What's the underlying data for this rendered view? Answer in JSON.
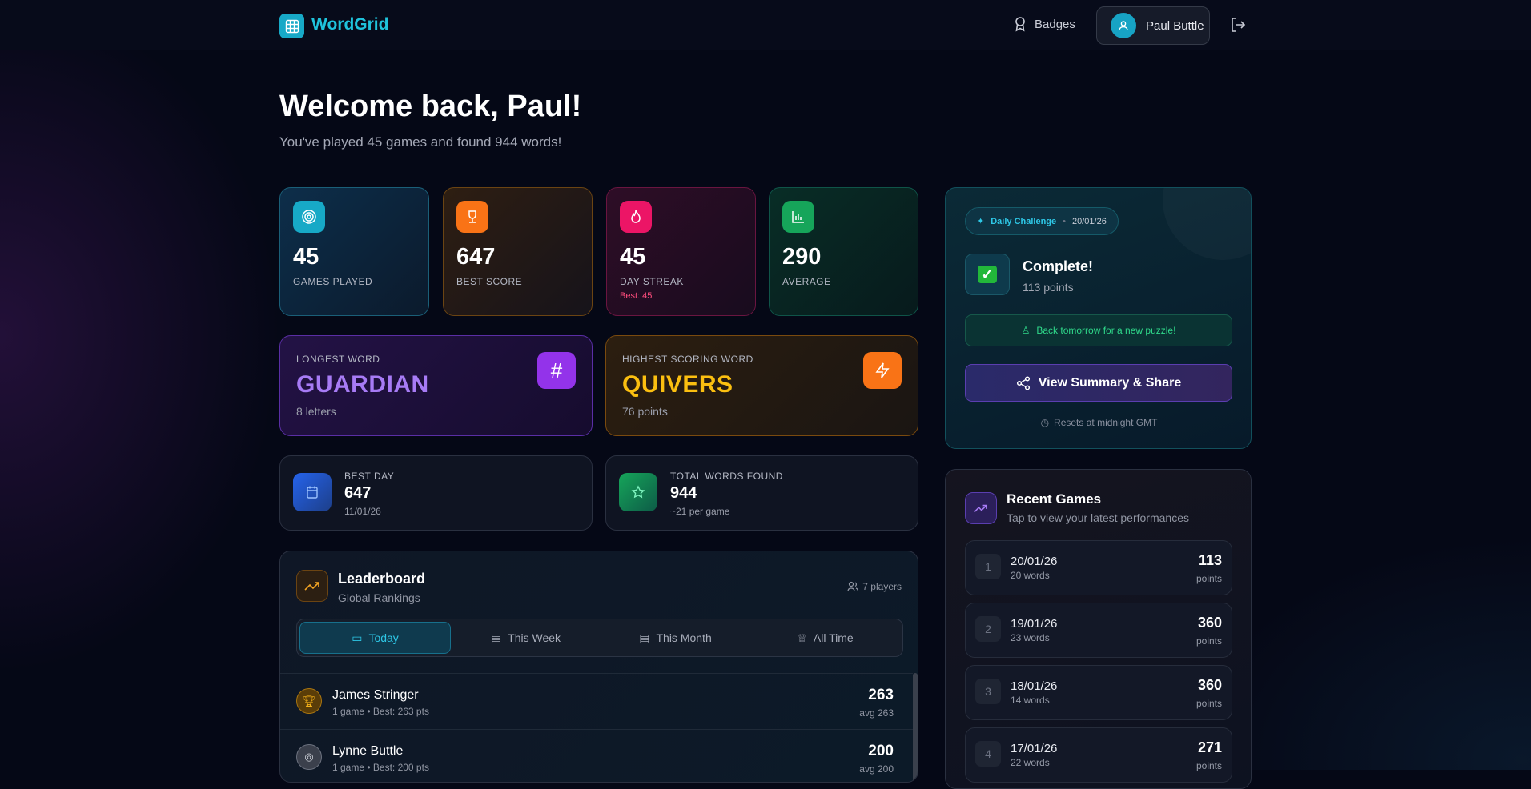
{
  "app": {
    "name": "WordGrid",
    "accent": "#1fc3dc"
  },
  "nav": {
    "badges": "Badges",
    "user": "Paul Buttle"
  },
  "hero": {
    "title": "Welcome back, Paul!",
    "subtitle": "You've played 45 games and found 944 words!"
  },
  "stats": [
    {
      "value": "45",
      "label": "GAMES PLAYED",
      "icon": "target-icon",
      "color": "#17a9c7"
    },
    {
      "value": "647",
      "label": "BEST SCORE",
      "icon": "trophy-icon",
      "color": "#f97316"
    },
    {
      "value": "45",
      "label": "DAY STREAK",
      "extra": "Best: 45",
      "icon": "flame-icon",
      "color": "#ec1566"
    },
    {
      "value": "290",
      "label": "AVERAGE",
      "icon": "bar-chart-icon",
      "color": "#16a55a"
    }
  ],
  "longest": {
    "label": "LONGEST WORD",
    "word": "GUARDIAN",
    "meta": "8 letters"
  },
  "highest": {
    "label": "HIGHEST SCORING WORD",
    "word": "QUIVERS",
    "meta": "76 points"
  },
  "best_day": {
    "label": "BEST DAY",
    "value": "647",
    "meta": "11/01/26"
  },
  "total_words": {
    "label": "TOTAL WORDS FOUND",
    "value": "944",
    "meta": "~21 per game"
  },
  "leaderboard": {
    "title": "Leaderboard",
    "subtitle": "Global Rankings",
    "players": "7 players",
    "tabs": [
      "Today",
      "This Week",
      "This Month",
      "All Time"
    ],
    "active_tab": "Today",
    "rows": [
      {
        "name": "James Stringer",
        "sub": "1 game • Best: 263 pts",
        "score": "263",
        "avg": "avg 263"
      },
      {
        "name": "Lynne Buttle",
        "sub": "1 game • Best: 200 pts",
        "score": "200",
        "avg": "avg 200"
      }
    ]
  },
  "daily": {
    "badge": "Daily Challenge",
    "date": "20/01/26",
    "status": "Complete!",
    "points": "113 points",
    "notice": "Back tomorrow for a new puzzle!",
    "button": "View Summary & Share",
    "reset": "Resets at midnight GMT"
  },
  "recent": {
    "title": "Recent Games",
    "subtitle": "Tap to view your latest performances",
    "games": [
      {
        "n": "1",
        "date": "20/01/26",
        "words": "20 words",
        "points": "113",
        "label": "points"
      },
      {
        "n": "2",
        "date": "19/01/26",
        "words": "23 words",
        "points": "360",
        "label": "points"
      },
      {
        "n": "3",
        "date": "18/01/26",
        "words": "14 words",
        "points": "360",
        "label": "points"
      },
      {
        "n": "4",
        "date": "17/01/26",
        "words": "22 words",
        "points": "271",
        "label": "points"
      }
    ]
  }
}
